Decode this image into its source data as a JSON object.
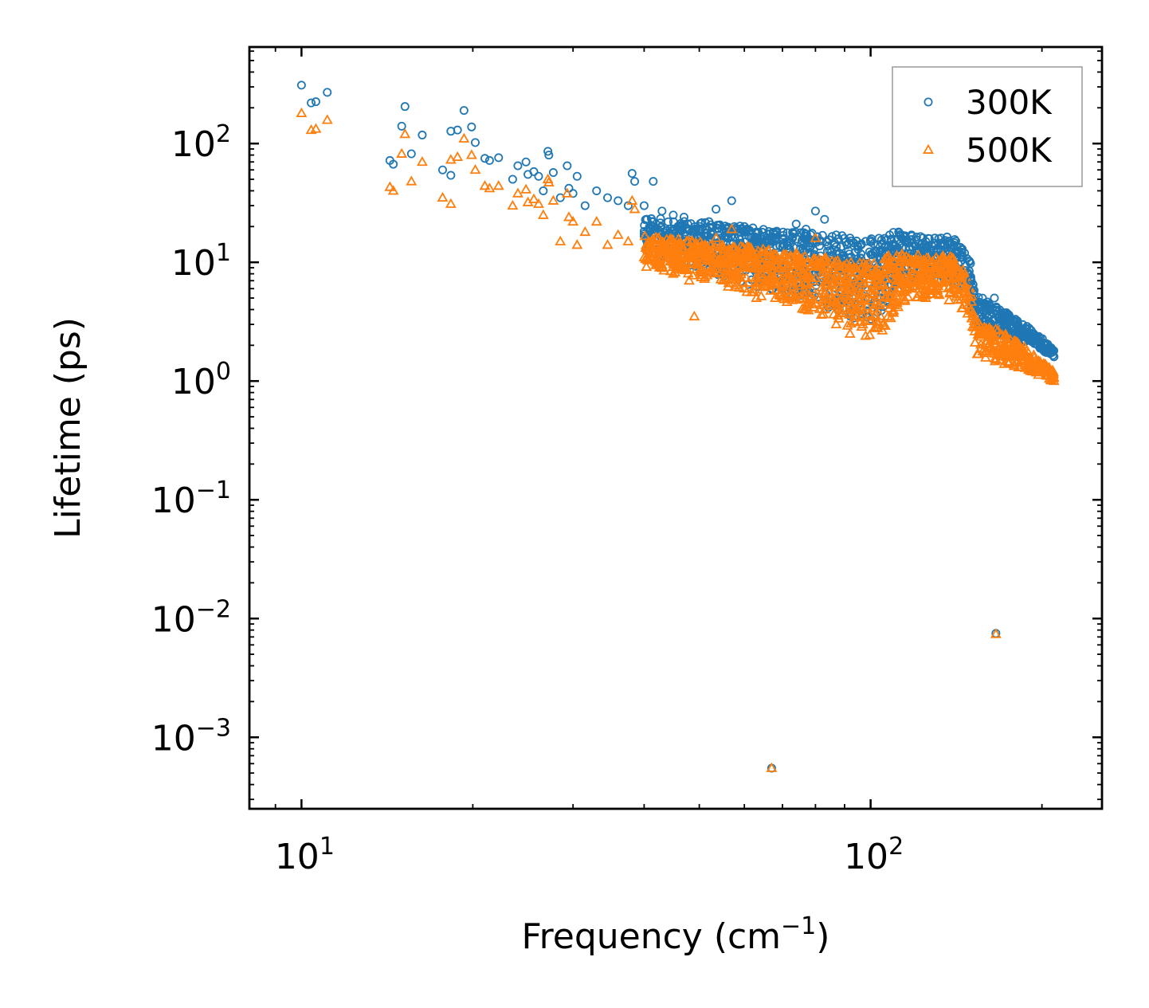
{
  "chart_data": {
    "type": "scatter",
    "title": "",
    "xlabel": "Frequency (cm",
    "xlabel_sup": "−1",
    "xlabel_end": ")",
    "ylabel": "Lifetime (ps)",
    "xscale": "log",
    "yscale": "log",
    "xlim": [
      8.1,
      255
    ],
    "ylim": [
      0.00025,
      650
    ],
    "x_ticks": [
      {
        "value": 10,
        "base": "10",
        "exp": "1"
      },
      {
        "value": 100,
        "base": "10",
        "exp": "2"
      }
    ],
    "y_ticks": [
      {
        "value": 0.001,
        "base": "10",
        "exp": "−3"
      },
      {
        "value": 0.01,
        "base": "10",
        "exp": "−2"
      },
      {
        "value": 0.1,
        "base": "10",
        "exp": "−1"
      },
      {
        "value": 1,
        "base": "10",
        "exp": "0"
      },
      {
        "value": 10,
        "base": "10",
        "exp": "1"
      },
      {
        "value": 100,
        "base": "10",
        "exp": "2"
      }
    ],
    "legend_position": "top-right",
    "series": [
      {
        "name": "300K",
        "marker": "circle",
        "color": "#1f77b4",
        "points": [
          [
            10.0,
            310
          ],
          [
            10.4,
            220
          ],
          [
            10.6,
            225
          ],
          [
            11.1,
            270
          ],
          [
            14.3,
            72
          ],
          [
            14.5,
            67
          ],
          [
            15.0,
            140
          ],
          [
            15.2,
            205
          ],
          [
            15.6,
            82
          ],
          [
            16.3,
            118
          ],
          [
            17.7,
            60
          ],
          [
            18.3,
            54
          ],
          [
            18.3,
            127
          ],
          [
            18.8,
            130
          ],
          [
            19.3,
            190
          ],
          [
            19.9,
            138
          ],
          [
            20.2,
            102
          ],
          [
            21.0,
            75
          ],
          [
            21.4,
            72
          ],
          [
            22.2,
            76
          ],
          [
            23.5,
            50
          ],
          [
            24.0,
            65
          ],
          [
            24.8,
            70
          ],
          [
            25.0,
            55
          ],
          [
            25.6,
            58
          ],
          [
            26.1,
            53
          ],
          [
            26.6,
            40
          ],
          [
            27.1,
            86
          ],
          [
            27.2,
            80
          ],
          [
            27.7,
            57
          ],
          [
            28.5,
            35
          ],
          [
            29.3,
            65
          ],
          [
            29.5,
            42
          ],
          [
            30.0,
            38
          ],
          [
            30.5,
            53
          ],
          [
            31.5,
            30
          ],
          [
            33.0,
            40
          ],
          [
            34.5,
            35
          ],
          [
            36.0,
            33
          ],
          [
            37.5,
            30
          ],
          [
            38.1,
            56
          ],
          [
            38.5,
            48
          ],
          [
            40.0,
            30
          ],
          [
            41.5,
            48
          ],
          [
            43.0,
            27
          ],
          [
            45.0,
            25
          ],
          [
            47.0,
            24
          ],
          [
            52.0,
            22
          ],
          [
            53.5,
            28
          ],
          [
            57.0,
            33
          ],
          [
            60.0,
            20
          ],
          [
            63.0,
            18
          ],
          [
            68.0,
            17
          ],
          [
            74.0,
            21
          ],
          [
            77.0,
            19
          ],
          [
            80.0,
            27
          ],
          [
            83.0,
            23
          ],
          [
            87.0,
            17
          ],
          [
            92.0,
            16
          ],
          [
            98.0,
            15
          ],
          [
            103.0,
            14
          ],
          [
            108.0,
            17
          ],
          [
            112.0,
            18
          ],
          [
            118.0,
            17
          ],
          [
            125.0,
            15
          ],
          [
            133.0,
            16
          ],
          [
            140.0,
            14
          ],
          [
            150.0,
            7
          ],
          [
            152.0,
            5.8
          ],
          [
            165.0,
            5.0
          ],
          [
            172.0,
            3.5
          ],
          [
            180.0,
            3.2
          ],
          [
            192.0,
            2.5
          ],
          [
            205.0,
            1.9
          ],
          [
            210.0,
            1.6
          ],
          [
            67.0,
            0.00055
          ],
          [
            166.0,
            0.0075
          ]
        ]
      },
      {
        "name": "500K",
        "marker": "triangle",
        "color": "#ff7f0e",
        "points": [
          [
            10.0,
            180
          ],
          [
            10.4,
            130
          ],
          [
            10.6,
            133
          ],
          [
            11.1,
            158
          ],
          [
            14.3,
            43
          ],
          [
            14.5,
            40
          ],
          [
            15.0,
            82
          ],
          [
            15.2,
            120
          ],
          [
            15.6,
            48
          ],
          [
            16.3,
            70
          ],
          [
            17.7,
            35
          ],
          [
            18.3,
            31
          ],
          [
            18.3,
            73
          ],
          [
            18.8,
            77
          ],
          [
            19.3,
            110
          ],
          [
            19.9,
            80
          ],
          [
            20.2,
            60
          ],
          [
            21.0,
            44
          ],
          [
            21.4,
            42
          ],
          [
            22.2,
            44
          ],
          [
            23.5,
            30
          ],
          [
            24.0,
            38
          ],
          [
            24.8,
            41
          ],
          [
            25.0,
            32
          ],
          [
            25.6,
            34
          ],
          [
            26.1,
            31
          ],
          [
            26.6,
            25
          ],
          [
            27.1,
            50
          ],
          [
            27.2,
            47
          ],
          [
            27.7,
            33
          ],
          [
            28.5,
            15
          ],
          [
            29.3,
            38
          ],
          [
            29.5,
            24
          ],
          [
            30.0,
            22
          ],
          [
            30.5,
            14
          ],
          [
            31.5,
            18
          ],
          [
            33.0,
            22
          ],
          [
            34.5,
            14
          ],
          [
            36.0,
            17
          ],
          [
            37.5,
            15
          ],
          [
            38.1,
            33
          ],
          [
            38.5,
            28
          ],
          [
            40.0,
            11
          ],
          [
            41.5,
            12
          ],
          [
            43.0,
            9
          ],
          [
            45.0,
            8
          ],
          [
            48.0,
            7
          ],
          [
            49.0,
            3.5
          ],
          [
            53.5,
            16
          ],
          [
            57.0,
            19
          ],
          [
            60.0,
            6
          ],
          [
            63.0,
            5
          ],
          [
            68.0,
            5
          ],
          [
            74.0,
            12
          ],
          [
            77.0,
            4
          ],
          [
            80.0,
            16
          ],
          [
            83.0,
            4
          ],
          [
            87.0,
            3
          ],
          [
            92.0,
            2.5
          ],
          [
            98.0,
            2.4
          ],
          [
            103.0,
            3
          ],
          [
            108.0,
            5
          ],
          [
            112.0,
            7
          ],
          [
            118.0,
            6
          ],
          [
            125.0,
            5
          ],
          [
            133.0,
            8
          ],
          [
            140.0,
            6
          ],
          [
            150.0,
            4
          ],
          [
            152.0,
            3.2
          ],
          [
            165.0,
            2.4
          ],
          [
            172.0,
            1.8
          ],
          [
            180.0,
            1.6
          ],
          [
            192.0,
            1.4
          ],
          [
            205.0,
            1.2
          ],
          [
            210.0,
            1.0
          ],
          [
            67.0,
            0.00055
          ],
          [
            166.0,
            0.0074
          ]
        ]
      }
    ],
    "bands": [
      {
        "series": "300K",
        "x": [
          40,
          45,
          50,
          55,
          60,
          65,
          70,
          75,
          80,
          85,
          90,
          95,
          100,
          105,
          110,
          115,
          120,
          125,
          130,
          135,
          140,
          145,
          150,
          152,
          155,
          160,
          170,
          180,
          190,
          200,
          210
        ],
        "lo": [
          11,
          9.5,
          8.5,
          7.5,
          6.5,
          6,
          5.5,
          5,
          4.5,
          4,
          3.5,
          3.2,
          3.2,
          4,
          5.5,
          6.5,
          7,
          7,
          7,
          7,
          6.5,
          6,
          5,
          3,
          2.5,
          2.5,
          2.3,
          2.2,
          2,
          1.8,
          1.6
        ],
        "hi": [
          24,
          23,
          22,
          21,
          20,
          19,
          18,
          18,
          18,
          17,
          17,
          16,
          16,
          17,
          18,
          18,
          17,
          16,
          16,
          17,
          16,
          13,
          10,
          6,
          5.2,
          4.8,
          4.0,
          3.4,
          2.8,
          2.3,
          1.8
        ]
      },
      {
        "series": "500K",
        "x": [
          40,
          45,
          50,
          55,
          60,
          65,
          70,
          75,
          80,
          85,
          90,
          95,
          100,
          105,
          110,
          115,
          120,
          125,
          130,
          135,
          140,
          145,
          150,
          152,
          155,
          160,
          170,
          180,
          190,
          200,
          210
        ],
        "lo": [
          9,
          8,
          7,
          6,
          5.5,
          5,
          4.5,
          4,
          3.6,
          3.3,
          3,
          2.6,
          2.3,
          2.6,
          3.5,
          4.5,
          5,
          5,
          5,
          5,
          4.5,
          4,
          3.3,
          1.8,
          1.6,
          1.5,
          1.4,
          1.3,
          1.2,
          1.1,
          0.95
        ],
        "hi": [
          17,
          16,
          15,
          14,
          14,
          13,
          12,
          12,
          11,
          11,
          10,
          10,
          10,
          11,
          12,
          12,
          12,
          11,
          11,
          12,
          11,
          9,
          6,
          3.5,
          3.2,
          3.0,
          2.6,
          2.2,
          1.8,
          1.5,
          1.2
        ]
      }
    ]
  }
}
